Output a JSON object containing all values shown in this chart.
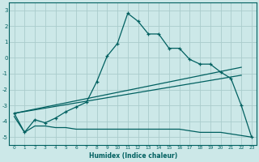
{
  "xlabel": "Humidex (Indice chaleur)",
  "bg_color": "#cce8e8",
  "line_color": "#006060",
  "grid_color": "#aacccc",
  "xlim": [
    -0.5,
    23.5
  ],
  "ylim": [
    -5.5,
    3.5
  ],
  "xticks": [
    0,
    1,
    2,
    3,
    4,
    5,
    6,
    7,
    8,
    9,
    10,
    11,
    12,
    13,
    14,
    15,
    16,
    17,
    18,
    19,
    20,
    21,
    22,
    23
  ],
  "yticks": [
    -5,
    -4,
    -3,
    -2,
    -1,
    0,
    1,
    2,
    3
  ],
  "curve_x": [
    0,
    1,
    2,
    3,
    4,
    5,
    6,
    7,
    8,
    9,
    10,
    11,
    12,
    13,
    14,
    15,
    16,
    17,
    18,
    19,
    20,
    21,
    22,
    23
  ],
  "curve_y": [
    -3.5,
    -4.7,
    -3.9,
    -4.1,
    -3.8,
    -3.4,
    -3.1,
    -2.8,
    -1.5,
    0.1,
    0.9,
    2.8,
    2.3,
    1.5,
    1.5,
    0.6,
    0.6,
    -0.1,
    -0.4,
    -0.4,
    -0.9,
    -1.3,
    -3.0,
    -5.0
  ],
  "trend1_x": [
    0,
    22
  ],
  "trend1_y": [
    -3.5,
    -0.6
  ],
  "trend2_x": [
    0,
    22
  ],
  "trend2_y": [
    -3.5,
    -1.1
  ],
  "flat_x": [
    0,
    1,
    2,
    3,
    4,
    5,
    6,
    7,
    8,
    9,
    10,
    11,
    12,
    13,
    14,
    15,
    16,
    17,
    18,
    19,
    20,
    21,
    22,
    23
  ],
  "flat_y": [
    -3.7,
    -4.7,
    -4.3,
    -4.3,
    -4.4,
    -4.4,
    -4.5,
    -4.5,
    -4.5,
    -4.5,
    -4.5,
    -4.5,
    -4.5,
    -4.5,
    -4.5,
    -4.5,
    -4.5,
    -4.6,
    -4.7,
    -4.7,
    -4.7,
    -4.8,
    -4.9,
    -5.0
  ]
}
